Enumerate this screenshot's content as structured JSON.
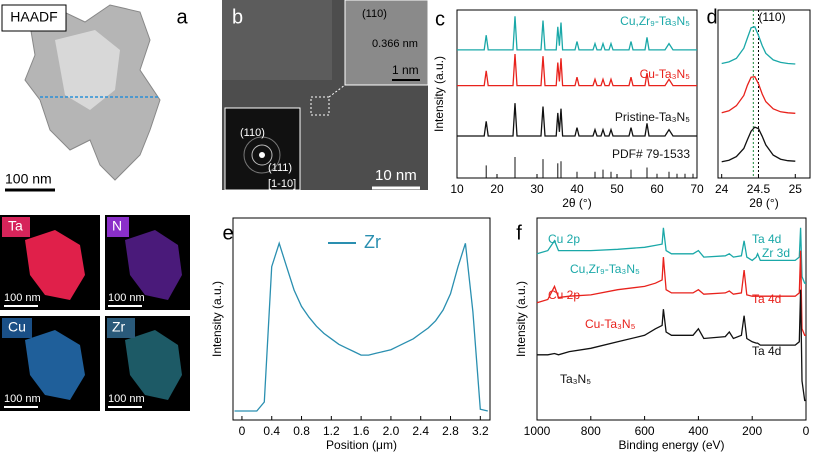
{
  "panel_a": {
    "label": "a",
    "title": "HAADF",
    "scale": "100 nm",
    "maps": [
      {
        "element": "Ta",
        "scale": "100 nm"
      },
      {
        "element": "N",
        "scale": "100 nm"
      },
      {
        "element": "Cu",
        "scale": "100 nm"
      },
      {
        "element": "Zr",
        "scale": "100 nm"
      }
    ]
  },
  "panel_b": {
    "label": "b",
    "scale": "10 nm",
    "inset_scale": "1 nm",
    "inset_plane": "(110)",
    "inset_spacing": "0.366 nm",
    "fft_labels": [
      "(110)",
      "(111)",
      "[1-10]"
    ]
  },
  "chart_data": [
    {
      "type": "line",
      "panel": "c",
      "x_label": "2θ (°)",
      "y_label": "Intensity (a.u.)",
      "xlim": [
        10,
        70
      ],
      "xticks": [
        10,
        20,
        30,
        40,
        50,
        60,
        70
      ],
      "ylim": [
        0,
        4
      ],
      "x": [
        10,
        16.8,
        17.3,
        17.8,
        24,
        24.5,
        25,
        31,
        31.5,
        32,
        34.8,
        35.2,
        35.6,
        36.0,
        36.4,
        39.5,
        40,
        40.5,
        44,
        44.5,
        45,
        46,
        46.5,
        47,
        48,
        48.5,
        49,
        53,
        53.5,
        54,
        57,
        57.5,
        58,
        62,
        63,
        64,
        70
      ],
      "series": [
        {
          "name": "Cu,Zr₉-Ta₃N₅",
          "color": "#1aa8a8",
          "values": [
            3.05,
            3.05,
            3.4,
            3.05,
            3.05,
            3.85,
            3.05,
            3.05,
            3.75,
            3.05,
            3.05,
            3.6,
            3.15,
            3.7,
            3.05,
            3.05,
            3.25,
            3.05,
            3.05,
            3.2,
            3.05,
            3.05,
            3.2,
            3.05,
            3.05,
            3.2,
            3.05,
            3.05,
            3.25,
            3.05,
            3.05,
            3.35,
            3.05,
            3.05,
            3.2,
            3.05,
            3.05
          ]
        },
        {
          "name": "Cu-Ta₃N₅",
          "color": "#e8221c",
          "values": [
            2.2,
            2.2,
            2.55,
            2.2,
            2.2,
            2.95,
            2.2,
            2.2,
            2.9,
            2.2,
            2.2,
            2.75,
            2.3,
            2.85,
            2.2,
            2.2,
            2.4,
            2.2,
            2.2,
            2.35,
            2.2,
            2.2,
            2.35,
            2.2,
            2.2,
            2.35,
            2.2,
            2.2,
            2.4,
            2.2,
            2.2,
            2.5,
            2.2,
            2.2,
            2.35,
            2.2,
            2.2
          ]
        },
        {
          "name": "Pristine-Ta₃N₅",
          "color": "#111111",
          "values": [
            1.0,
            1.0,
            1.35,
            1.0,
            1.0,
            1.78,
            1.0,
            1.0,
            1.7,
            1.0,
            1.0,
            1.55,
            1.1,
            1.65,
            1.0,
            1.0,
            1.2,
            1.0,
            1.0,
            1.15,
            1.0,
            1.0,
            1.15,
            1.0,
            1.0,
            1.15,
            1.0,
            1.0,
            1.2,
            1.0,
            1.0,
            1.3,
            1.0,
            1.0,
            1.15,
            1.0,
            1.0
          ]
        }
      ],
      "reference": {
        "name": "PDF# 79-1533",
        "color": "#111111",
        "x": [
          17.3,
          24.5,
          31.5,
          35.2,
          36.0,
          40,
          44.5,
          46.5,
          48.5,
          53.5,
          57.5,
          60,
          63,
          65,
          67,
          69
        ],
        "values": [
          0.3,
          0.5,
          0.45,
          0.35,
          0.4,
          0.15,
          0.15,
          0.2,
          0.15,
          0.2,
          0.25,
          0.1,
          0.15,
          0.1,
          0.1,
          0.1
        ]
      }
    },
    {
      "type": "line",
      "panel": "d",
      "x_label": "2θ (°)",
      "annotation": "(110)",
      "xlim": [
        23.95,
        25.2
      ],
      "xticks": [
        24,
        24.5,
        25
      ],
      "ylim": [
        0,
        3.3
      ],
      "vlines": [
        24.43,
        24.5
      ],
      "x": [
        24,
        24.1,
        24.2,
        24.3,
        24.35,
        24.4,
        24.45,
        24.5,
        24.55,
        24.6,
        24.7,
        24.8,
        24.9,
        25
      ],
      "series": [
        {
          "color": "#1aa8a8",
          "values": [
            2.25,
            2.28,
            2.35,
            2.55,
            2.75,
            2.95,
            2.97,
            2.8,
            2.6,
            2.45,
            2.32,
            2.27,
            2.25,
            2.24
          ]
        },
        {
          "color": "#e8221c",
          "values": [
            1.28,
            1.32,
            1.42,
            1.62,
            1.82,
            1.98,
            1.99,
            1.85,
            1.65,
            1.5,
            1.36,
            1.3,
            1.28,
            1.27
          ]
        },
        {
          "color": "#111111",
          "values": [
            0.32,
            0.35,
            0.42,
            0.58,
            0.75,
            0.92,
            1.0,
            0.97,
            0.82,
            0.65,
            0.45,
            0.37,
            0.34,
            0.33
          ]
        }
      ]
    },
    {
      "type": "line",
      "panel": "e",
      "x_label": "Position (μm)",
      "y_label": "Intensity (a.u.)",
      "legend": true,
      "xlim": [
        -0.12,
        3.33
      ],
      "xticks": [
        0,
        0.4,
        0.8,
        1.2,
        1.6,
        {
          "value": 2,
          "label": "2.0"
        },
        2.4,
        2.8,
        3.2
      ],
      "ylim": [
        0,
        1.12
      ],
      "x": [
        -0.1,
        0,
        0.1,
        0.2,
        0.3,
        0.4,
        0.5,
        0.6,
        0.7,
        0.8,
        0.9,
        1.0,
        1.1,
        1.2,
        1.3,
        1.4,
        1.5,
        1.6,
        1.7,
        1.8,
        1.9,
        2.0,
        2.1,
        2.2,
        2.3,
        2.4,
        2.5,
        2.6,
        2.7,
        2.8,
        2.9,
        3.0,
        3.1,
        3.2,
        3.3
      ],
      "series": [
        {
          "name": "Zr",
          "color": "#2a8fb0",
          "values": [
            0.05,
            0.05,
            0.05,
            0.05,
            0.1,
            0.85,
            0.98,
            0.85,
            0.72,
            0.63,
            0.57,
            0.52,
            0.48,
            0.45,
            0.42,
            0.4,
            0.38,
            0.36,
            0.36,
            0.37,
            0.38,
            0.39,
            0.41,
            0.43,
            0.45,
            0.48,
            0.51,
            0.55,
            0.61,
            0.7,
            0.85,
            0.98,
            0.6,
            0.06,
            0.05
          ]
        }
      ]
    },
    {
      "type": "line",
      "panel": "f",
      "x_label": "Binding energy (eV)",
      "y_label": "Intensity (a.u.)",
      "xlim": [
        1000,
        0
      ],
      "xticks": [
        1000,
        800,
        600,
        400,
        200,
        0
      ],
      "ylim": [
        0,
        3.1
      ],
      "x": [
        1000,
        960,
        935,
        920,
        880,
        800,
        700,
        600,
        560,
        535,
        530,
        520,
        500,
        420,
        400,
        380,
        300,
        285,
        270,
        240,
        230,
        220,
        200,
        185,
        180,
        170,
        100,
        40,
        25,
        20,
        15,
        5,
        0
      ],
      "series": [
        {
          "name": "Cu,Zr₉-Ta₃N₅",
          "color": "#1aa8a8",
          "values": [
            2.55,
            2.6,
            2.75,
            2.6,
            2.6,
            2.6,
            2.62,
            2.65,
            2.68,
            2.7,
            2.95,
            2.6,
            2.55,
            2.55,
            2.6,
            2.5,
            2.52,
            2.55,
            2.5,
            2.52,
            2.75,
            2.5,
            2.45,
            2.5,
            2.55,
            2.45,
            2.45,
            2.45,
            2.5,
            2.95,
            2.2,
            2.1,
            2.1
          ]
        },
        {
          "name": "Cu-Ta₃N₅",
          "color": "#e8221c",
          "values": [
            1.8,
            1.85,
            2.05,
            1.88,
            1.9,
            1.92,
            2.0,
            2.05,
            2.1,
            2.15,
            2.5,
            2.0,
            1.95,
            1.95,
            2.0,
            1.93,
            1.95,
            1.98,
            1.93,
            1.95,
            2.3,
            1.92,
            1.9,
            1.9,
            1.9,
            1.9,
            1.9,
            1.9,
            1.95,
            2.6,
            1.4,
            1.3,
            1.3
          ]
        },
        {
          "name": "Ta₃N₅",
          "color": "#111111",
          "values": [
            1.0,
            1.0,
            1.02,
            1.0,
            1.05,
            1.1,
            1.2,
            1.3,
            1.4,
            1.45,
            1.7,
            1.35,
            1.3,
            1.3,
            1.4,
            1.25,
            1.28,
            1.35,
            1.25,
            1.3,
            1.6,
            1.25,
            1.2,
            1.18,
            1.18,
            1.15,
            1.15,
            1.15,
            1.2,
            2.0,
            0.6,
            0.3,
            0.3
          ]
        }
      ],
      "annotations": [
        {
          "text": "Cu 2p",
          "color": "#1aa8a8"
        },
        {
          "text": "Ta 4d",
          "color": "#1aa8a8"
        },
        {
          "text": "Zr 3d",
          "color": "#1aa8a8"
        },
        {
          "text": "Cu 2p",
          "color": "#e8221c"
        },
        {
          "text": "Ta 4d",
          "color": "#e8221c"
        },
        {
          "text": "Ta 4d",
          "color": "#111111"
        }
      ]
    }
  ]
}
